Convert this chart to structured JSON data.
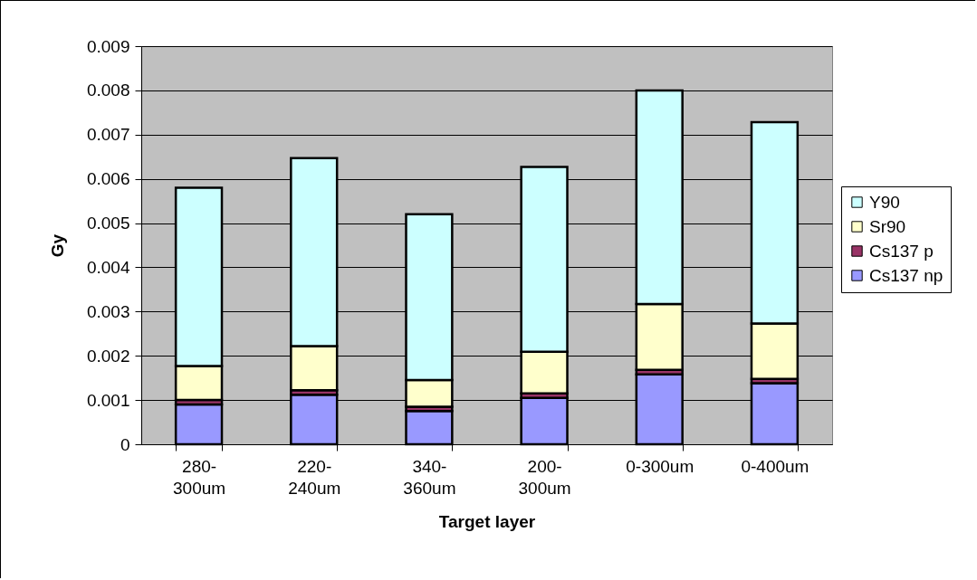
{
  "chart_data": {
    "type": "bar",
    "stacked": true,
    "xlabel": "Target layer",
    "ylabel": "Gy",
    "categories": [
      "280-300um",
      "220-240um",
      "340-360um",
      "200-300um",
      "0-300um",
      "0-400um"
    ],
    "series": [
      {
        "name": "Cs137 np",
        "color": "#9999ff",
        "values": [
          0.0009,
          0.00112,
          0.00075,
          0.00105,
          0.00158,
          0.00138
        ]
      },
      {
        "name": "Cs137 p",
        "color": "#993366",
        "values": [
          0.0001,
          0.0001,
          0.0001,
          0.0001,
          0.0001,
          0.0001
        ]
      },
      {
        "name": "Sr90",
        "color": "#ffffcc",
        "values": [
          0.00077,
          0.001,
          0.0006,
          0.00094,
          0.00149,
          0.00125
        ]
      },
      {
        "name": "Y90",
        "color": "#ccffff",
        "values": [
          0.00403,
          0.00425,
          0.00375,
          0.00418,
          0.00483,
          0.00455
        ]
      }
    ],
    "ylim": [
      0,
      0.009
    ],
    "yticks": [
      0,
      0.001,
      0.002,
      0.003,
      0.004,
      0.005,
      0.006,
      0.007,
      0.008,
      0.009
    ],
    "grid": "y",
    "legend": "right"
  }
}
